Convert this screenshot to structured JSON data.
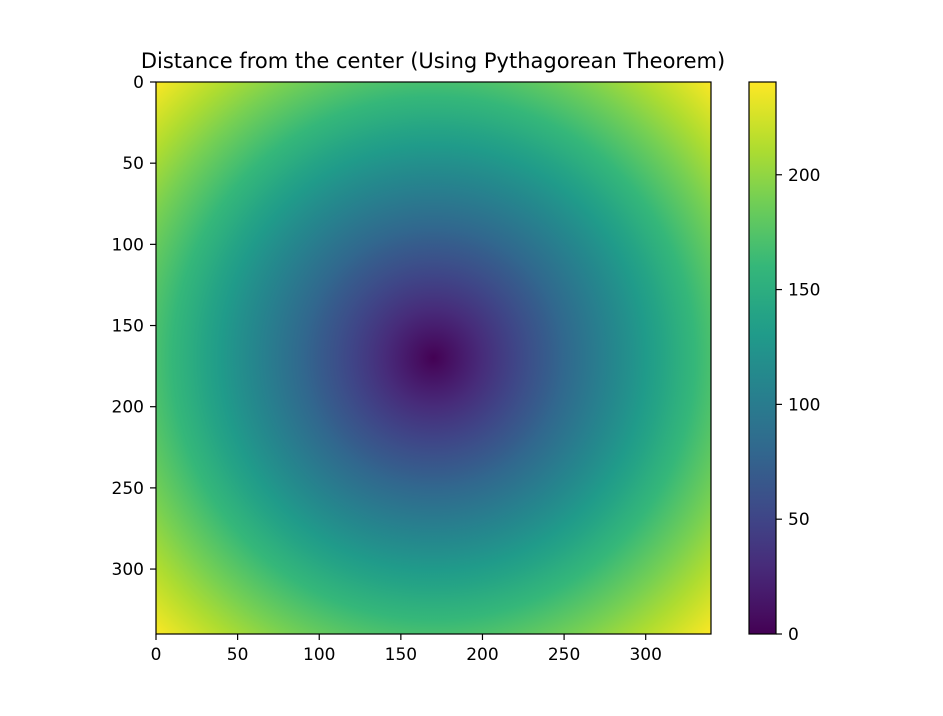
{
  "chart_data": {
    "type": "heatmap",
    "title": "Distance from the center (Using Pythagorean Theorem)",
    "xlabel": "",
    "ylabel": "",
    "image_size": [
      340,
      340
    ],
    "center": [
      170,
      170
    ],
    "xlim": [
      0,
      340
    ],
    "ylim": [
      340,
      0
    ],
    "x_ticks": [
      0,
      50,
      100,
      150,
      200,
      250,
      300
    ],
    "y_ticks": [
      0,
      50,
      100,
      150,
      200,
      250,
      300
    ],
    "colorbar": {
      "range": [
        0,
        240.4
      ],
      "ticks": [
        0,
        50,
        100,
        150,
        200
      ]
    },
    "colormap": "viridis",
    "grid": false
  }
}
